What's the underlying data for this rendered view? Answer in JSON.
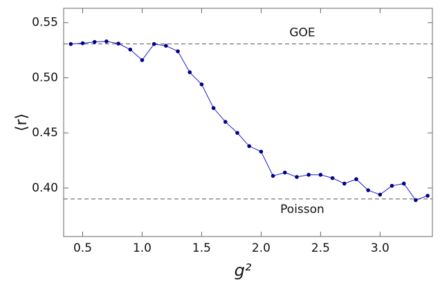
{
  "chart_data": {
    "type": "line",
    "x_label": "g²",
    "y_label": "⟨r⟩",
    "x": [
      0.4,
      0.5,
      0.6,
      0.7,
      0.8,
      0.9,
      1.0,
      1.1,
      1.2,
      1.3,
      1.4,
      1.5,
      1.6,
      1.7,
      1.8,
      1.9,
      2.0,
      2.1,
      2.2,
      2.3,
      2.4,
      2.5,
      2.6,
      2.7,
      2.8,
      2.9,
      3.0,
      3.1,
      3.2,
      3.3,
      3.4
    ],
    "series": [
      {
        "color": "#1a1acc",
        "marker_color": "#00008b",
        "values": [
          0.5306,
          0.5313,
          0.5325,
          0.533,
          0.531,
          0.5256,
          0.516,
          0.5306,
          0.529,
          0.524,
          0.505,
          0.494,
          0.4725,
          0.46,
          0.45,
          0.438,
          0.433,
          0.411,
          0.414,
          0.41,
          0.412,
          0.412,
          0.409,
          0.404,
          0.408,
          0.398,
          0.394,
          0.402,
          0.404,
          0.389,
          0.393
        ]
      }
    ],
    "reference_lines": [
      {
        "value": 0.5307,
        "label": "GOE"
      },
      {
        "value": 0.39,
        "label": "Poisson"
      }
    ],
    "xlim": [
      0.34,
      3.44
    ],
    "ylim": [
      0.356,
      0.563
    ],
    "xticks": [
      0.5,
      {
        "value": 1,
        "label": "1.0"
      },
      1.5,
      {
        "value": 2,
        "label": "2.0"
      },
      2.5,
      {
        "value": 3,
        "label": "3.0"
      }
    ],
    "yticks": [
      {
        "value": 0.4,
        "label": "0.40"
      },
      0.45,
      {
        "value": 0.5,
        "label": "0.50"
      },
      0.55
    ]
  }
}
